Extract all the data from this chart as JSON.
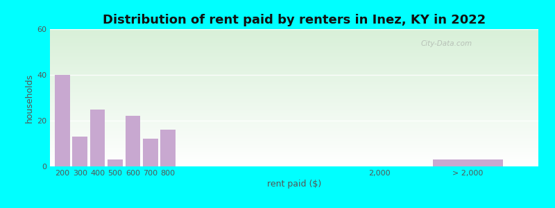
{
  "title": "Distribution of rent paid by renters in Inez, KY in 2022",
  "xlabel": "rent paid ($)",
  "ylabel": "households",
  "bar_color": "#c8a8d0",
  "background_outer": "#00ffff",
  "bar_values": [
    40,
    13,
    25,
    3,
    22,
    12,
    16,
    0,
    3
  ],
  "bar_labels": [
    "200",
    "300",
    "400",
    "500",
    "600",
    "700",
    "800",
    "2,000",
    "> 2,000"
  ],
  "ylim": [
    0,
    60
  ],
  "yticks": [
    0,
    20,
    40,
    60
  ],
  "title_fontsize": 13,
  "axis_label_fontsize": 9,
  "tick_fontsize": 8,
  "plot_bg_top": "#d8f0d8",
  "plot_bg_bottom": "#ffffff",
  "x_positions": [
    200,
    300,
    400,
    500,
    600,
    700,
    800,
    2000,
    2500
  ],
  "bar_widths": [
    85,
    85,
    85,
    85,
    85,
    85,
    85,
    85,
    400
  ],
  "xlim": [
    130,
    2900
  ]
}
